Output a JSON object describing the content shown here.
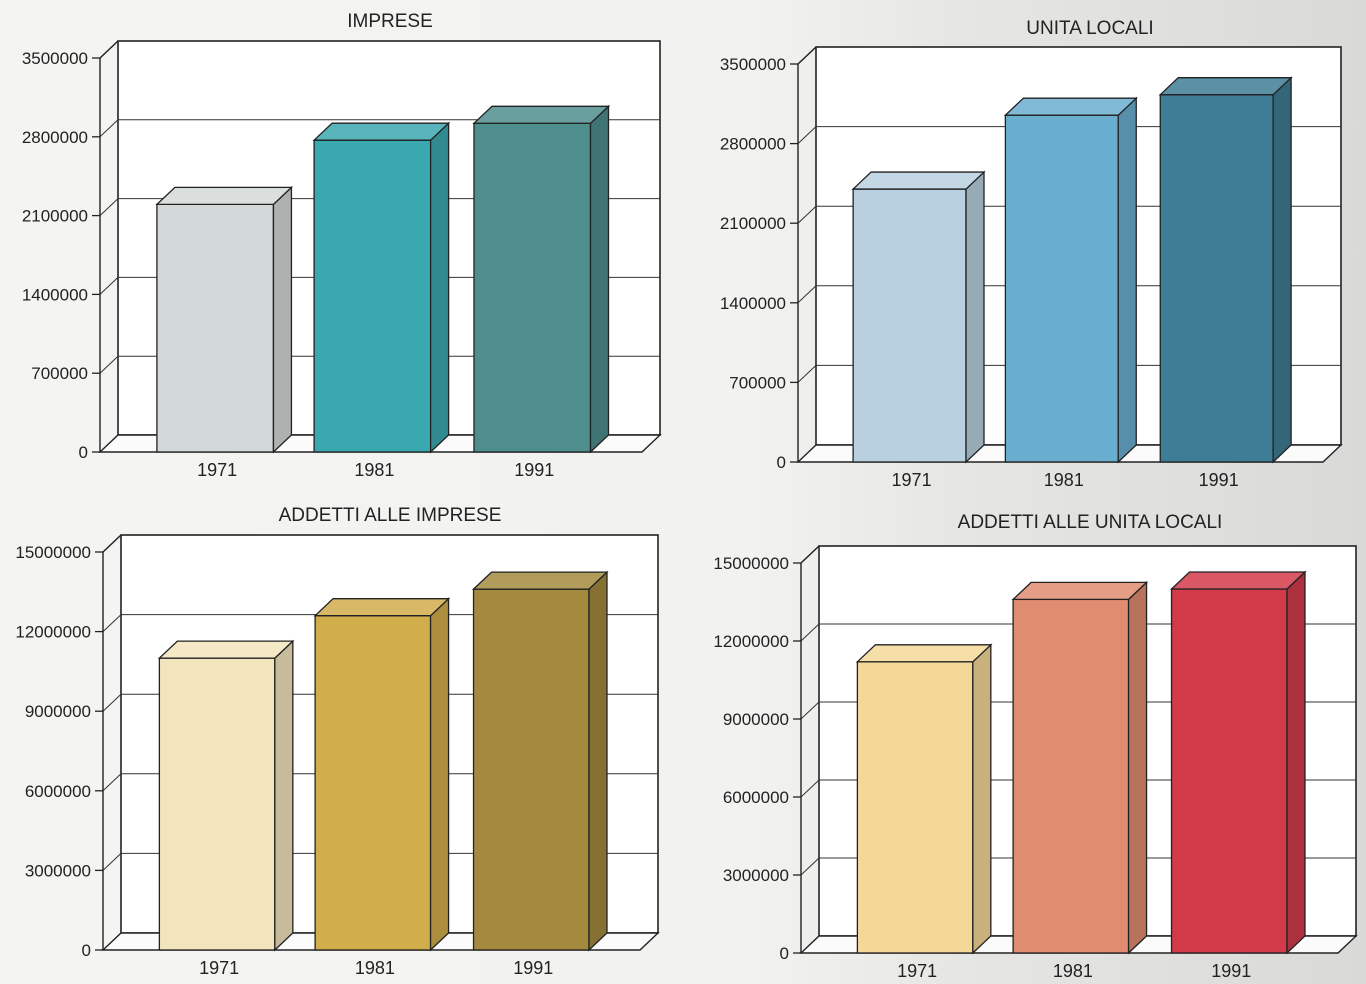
{
  "chart_data": [
    {
      "type": "bar",
      "title": "IMPRESE",
      "categories": [
        "1971",
        "1981",
        "1991"
      ],
      "values": [
        2200000,
        2770000,
        2920000
      ],
      "ylim": [
        0,
        3500000
      ],
      "yticks": [
        "0",
        "700000",
        "1400000",
        "2100000",
        "2800000",
        "3500000"
      ],
      "colors": [
        "#d3d9d8",
        "#3aa8b0",
        "#4e8e8d"
      ],
      "grid": true
    },
    {
      "type": "bar",
      "title": "UNITA LOCALI",
      "categories": [
        "1971",
        "1981",
        "1991"
      ],
      "values": [
        2400000,
        3050000,
        3230000
      ],
      "ylim": [
        0,
        3500000
      ],
      "yticks": [
        "0",
        "700000",
        "1400000",
        "2100000",
        "2800000",
        "3500000"
      ],
      "colors": [
        "#b8d0df",
        "#6aaecf",
        "#3f7c95"
      ],
      "grid": true
    },
    {
      "type": "bar",
      "title": "ADDETTI ALLE IMPRESE",
      "categories": [
        "1971",
        "1981",
        "1991"
      ],
      "values": [
        11000000,
        12600000,
        13600000
      ],
      "ylim": [
        0,
        15000000
      ],
      "yticks": [
        "0",
        "3000000",
        "6000000",
        "9000000",
        "12000000",
        "15000000"
      ],
      "colors": [
        "#f2e4bd",
        "#d2ad4c",
        "#a48a3e"
      ],
      "grid": true
    },
    {
      "type": "bar",
      "title": "ADDETTI ALLE UNITA LOCALI",
      "categories": [
        "1971",
        "1981",
        "1991"
      ],
      "values": [
        11200000,
        13600000,
        14000000
      ],
      "ylim": [
        0,
        15000000
      ],
      "yticks": [
        "0",
        "3000000",
        "6000000",
        "9000000",
        "12000000",
        "15000000"
      ],
      "colors": [
        "#f4d898",
        "#e08c70",
        "#d33b4b"
      ],
      "grid": true
    }
  ]
}
